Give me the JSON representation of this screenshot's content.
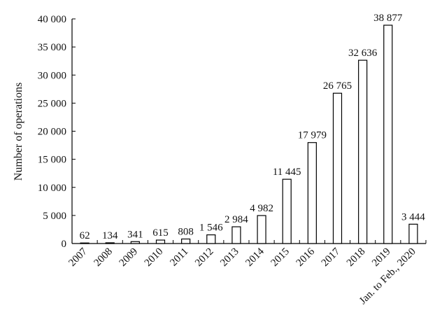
{
  "chart_data": {
    "type": "bar",
    "title": "",
    "xlabel": "",
    "ylabel": "Number of operations",
    "categories": [
      "2007",
      "2008",
      "2009",
      "2010",
      "2011",
      "2012",
      "2013",
      "2014",
      "2015",
      "2016",
      "2017",
      "2018",
      "2019",
      "Jan. to Feb., 2020"
    ],
    "values": [
      62,
      134,
      341,
      615,
      808,
      1546,
      2984,
      4982,
      11445,
      17979,
      26765,
      32636,
      38877,
      3444
    ],
    "data_labels": [
      "62",
      "134",
      "341",
      "615",
      "808",
      "1 546",
      "2 984",
      "4 982",
      "11 445",
      "17 979",
      "26 765",
      "32 636",
      "38 877",
      "3 444"
    ],
    "ylim": [
      0,
      40000
    ],
    "yticks": [
      0,
      5000,
      10000,
      15000,
      20000,
      25000,
      30000,
      35000,
      40000
    ],
    "ytick_labels": [
      "0",
      "5 000",
      "10 000",
      "15 000",
      "20 000",
      "25 000",
      "30 000",
      "35 000",
      "40 000"
    ],
    "grid": false,
    "legend": "none",
    "bar_fill": "#ffffff",
    "bar_stroke": "#000000"
  }
}
